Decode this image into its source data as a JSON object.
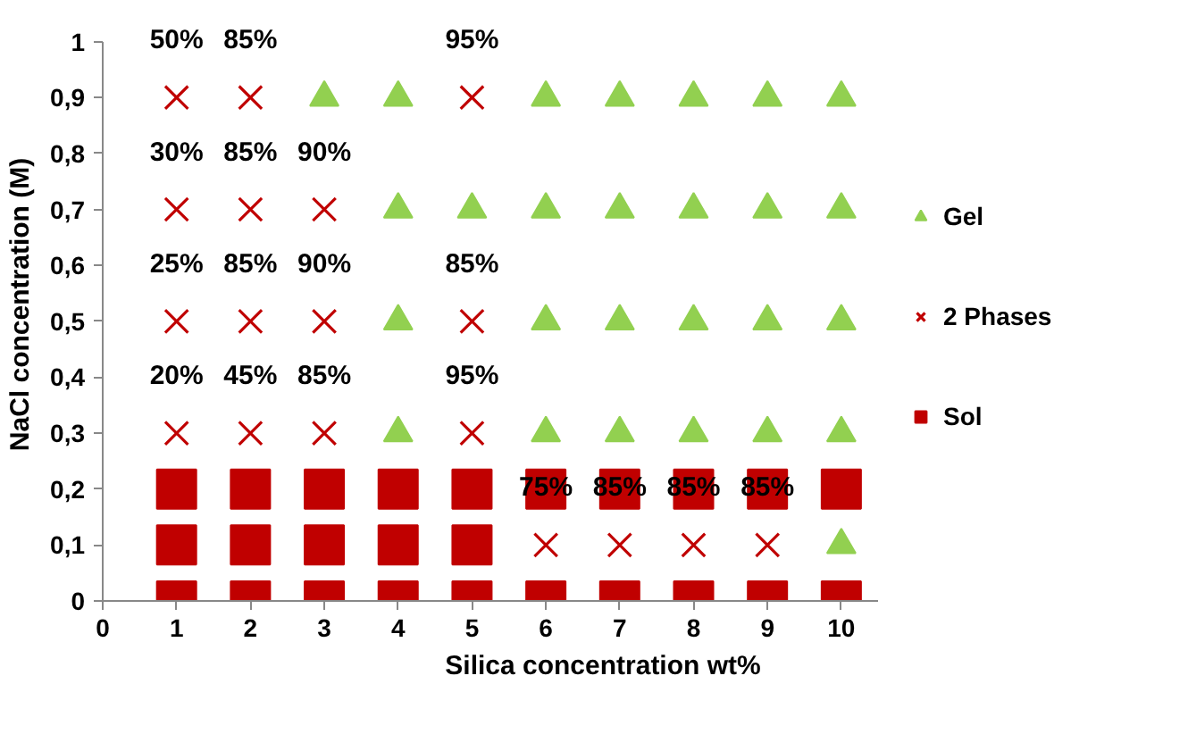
{
  "chart_data": {
    "type": "scatter",
    "xlabel": "Silica concentration wt%",
    "ylabel": "NaCl concentration (M)",
    "xlim": [
      0,
      10.5
    ],
    "xticks": [
      0,
      1,
      2,
      3,
      4,
      5,
      6,
      7,
      8,
      9,
      10
    ],
    "ylim": [
      0,
      1
    ],
    "yticks": [
      0,
      {
        "value": 0.1,
        "label": "0,1"
      },
      {
        "value": 0.2,
        "label": "0,2"
      },
      {
        "value": 0.3,
        "label": "0,3"
      },
      {
        "value": 0.4,
        "label": "0,4"
      },
      {
        "value": 0.5,
        "label": "0,5"
      },
      {
        "value": 0.6,
        "label": "0,6"
      },
      {
        "value": 0.7,
        "label": "0,7"
      },
      {
        "value": 0.8,
        "label": "0,8"
      },
      {
        "value": 0.9,
        "label": "0,9"
      },
      1
    ],
    "grid": false,
    "legend": "right",
    "series": [
      {
        "name": "Gel",
        "color": "#92d050",
        "marker": "triangle",
        "x": [
          10,
          4,
          6,
          7,
          8,
          9,
          10,
          4,
          6,
          7,
          8,
          9,
          10,
          4,
          5,
          6,
          7,
          8,
          9,
          10,
          3,
          4,
          6,
          7,
          8,
          9,
          10
        ],
        "values": [
          0.1,
          0.3,
          0.3,
          0.3,
          0.3,
          0.3,
          0.3,
          0.5,
          0.5,
          0.5,
          0.5,
          0.5,
          0.5,
          0.7,
          0.7,
          0.7,
          0.7,
          0.7,
          0.7,
          0.7,
          0.9,
          0.9,
          0.9,
          0.9,
          0.9,
          0.9,
          0.9
        ]
      },
      {
        "name": "2 Phases",
        "color": "#c00000",
        "marker": "cross",
        "x": [
          6,
          7,
          8,
          9,
          1,
          2,
          3,
          5,
          1,
          2,
          3,
          5,
          1,
          2,
          3,
          1,
          2,
          5
        ],
        "values": [
          0.1,
          0.1,
          0.1,
          0.1,
          0.3,
          0.3,
          0.3,
          0.3,
          0.5,
          0.5,
          0.5,
          0.5,
          0.7,
          0.7,
          0.7,
          0.9,
          0.9,
          0.9
        ]
      },
      {
        "name": "Sol",
        "color": "#c00000",
        "marker": "square",
        "x": [
          1,
          2,
          3,
          4,
          5,
          6,
          7,
          8,
          9,
          10,
          1,
          2,
          3,
          4,
          5,
          1,
          2,
          3,
          4,
          5,
          6,
          7,
          8,
          9,
          10
        ],
        "values": [
          0,
          0,
          0,
          0,
          0,
          0,
          0,
          0,
          0,
          0,
          0.1,
          0.1,
          0.1,
          0.1,
          0.1,
          0.2,
          0.2,
          0.2,
          0.2,
          0.2,
          0.2,
          0.2,
          0.2,
          0.2,
          0.2
        ]
      }
    ],
    "annotations": [
      {
        "text": "50%",
        "x": 1,
        "y": 0.9
      },
      {
        "text": "85%",
        "x": 2,
        "y": 0.9
      },
      {
        "text": "95%",
        "x": 5,
        "y": 0.9
      },
      {
        "text": "30%",
        "x": 1,
        "y": 0.7
      },
      {
        "text": "85%",
        "x": 2,
        "y": 0.7
      },
      {
        "text": "90%",
        "x": 3,
        "y": 0.7
      },
      {
        "text": "25%",
        "x": 1,
        "y": 0.5
      },
      {
        "text": "85%",
        "x": 2,
        "y": 0.5
      },
      {
        "text": "90%",
        "x": 3,
        "y": 0.5
      },
      {
        "text": "85%",
        "x": 5,
        "y": 0.5
      },
      {
        "text": "20%",
        "x": 1,
        "y": 0.3
      },
      {
        "text": "45%",
        "x": 2,
        "y": 0.3
      },
      {
        "text": "85%",
        "x": 3,
        "y": 0.3
      },
      {
        "text": "95%",
        "x": 5,
        "y": 0.3
      },
      {
        "text": "75%",
        "x": 6,
        "y": 0.1
      },
      {
        "text": "85%",
        "x": 7,
        "y": 0.1
      },
      {
        "text": "85%",
        "x": 8,
        "y": 0.1
      },
      {
        "text": "85%",
        "x": 9,
        "y": 0.1
      }
    ]
  }
}
